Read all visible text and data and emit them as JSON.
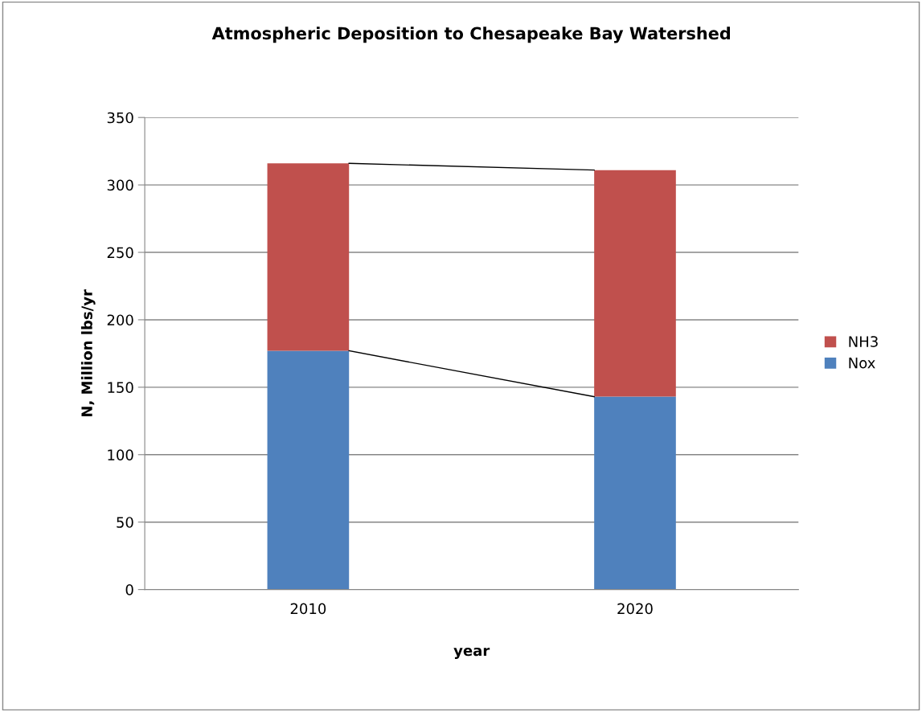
{
  "chart_data": {
    "type": "bar",
    "title": "Atmospheric Deposition to Chesapeake Bay Watershed",
    "xlabel": "year",
    "ylabel": "N, Million lbs/yr",
    "categories": [
      "2010",
      "2020"
    ],
    "stacked": true,
    "series": [
      {
        "name": "Nox",
        "color": "#4f81bd",
        "values": [
          177,
          143
        ]
      },
      {
        "name": "NH3",
        "color": "#c0504d",
        "values": [
          139,
          168
        ]
      }
    ],
    "ylim": [
      0,
      350
    ],
    "yticks": [
      0,
      50,
      100,
      150,
      200,
      250,
      300,
      350
    ],
    "grid": "y",
    "legend": "right"
  }
}
